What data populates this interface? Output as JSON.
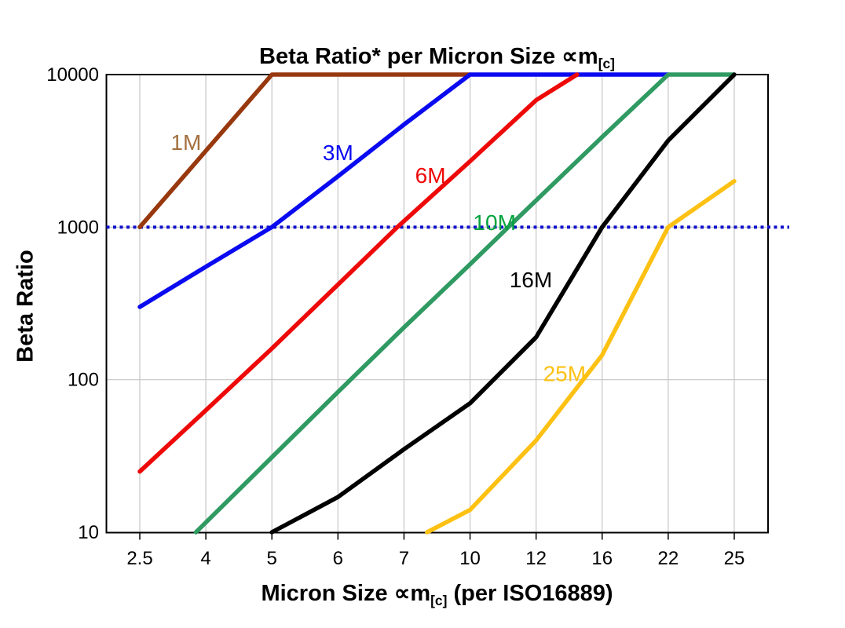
{
  "page": {
    "background": "#ffffff"
  },
  "chart_data": {
    "type": "line",
    "title": {
      "main": "Beta Ratio* per Micron Size ∝m",
      "sub": "[c]"
    },
    "x_axis": {
      "label_main": "Micron Size ∝m",
      "label_sub": "[c]",
      "label_tail": " (per ISO16889)",
      "categories": [
        "2.5",
        "4",
        "5",
        "6",
        "7",
        "10",
        "12",
        "16",
        "22",
        "25"
      ],
      "scale": "categorical-evenly-spaced"
    },
    "y_axis": {
      "label": "Beta Ratio",
      "scale": "log10",
      "ticks": [
        10,
        100,
        1000,
        10000
      ],
      "range": [
        10,
        10000
      ]
    },
    "grid": {
      "vertical_at_every_category": true,
      "horizontal_at": [
        100,
        1000
      ],
      "color": "#c6c6c6"
    },
    "reference_line": {
      "beta": 1000,
      "color": "#1111cc",
      "style": "dotted"
    },
    "series": [
      {
        "name": "1M",
        "color": "#98380e",
        "label": {
          "text": "1M",
          "color": "#a3703f",
          "xi": 0.7,
          "beta": 3600
        },
        "points": [
          [
            0,
            1000
          ],
          [
            1,
            3160
          ],
          [
            2,
            10000
          ],
          [
            5,
            10000
          ]
        ]
      },
      {
        "name": "3M",
        "color": "#0a0af0",
        "label": {
          "text": "3M",
          "color": "#0a0af0",
          "xi": 3.0,
          "beta": 3100
        },
        "points": [
          [
            0,
            300
          ],
          [
            1,
            550
          ],
          [
            2,
            1000
          ],
          [
            3,
            2150
          ],
          [
            4,
            4700
          ],
          [
            5,
            10000
          ],
          [
            8,
            10000
          ]
        ]
      },
      {
        "name": "6M",
        "color": "#ee0909",
        "label": {
          "text": "6M",
          "color": "#ee0909",
          "xi": 4.4,
          "beta": 2200
        },
        "points": [
          [
            0,
            25
          ],
          [
            1,
            63
          ],
          [
            2,
            160
          ],
          [
            3,
            420
          ],
          [
            3.9,
            1000
          ],
          [
            5,
            2700
          ],
          [
            6,
            6800
          ],
          [
            6.62,
            10000
          ]
        ]
      },
      {
        "name": "10M",
        "color": "#2f9a62",
        "label": {
          "text": "10M",
          "color": "#00a33c",
          "xi": 5.37,
          "beta": 1080
        },
        "points": [
          [
            0.85,
            10
          ],
          [
            2,
            31
          ],
          [
            3,
            83
          ],
          [
            4,
            220
          ],
          [
            5,
            570
          ],
          [
            5.58,
            1000
          ],
          [
            7,
            3900
          ],
          [
            8,
            10000
          ],
          [
            9,
            10000
          ]
        ]
      },
      {
        "name": "16M",
        "color": "#000000",
        "label": {
          "text": "16M",
          "color": "#000000",
          "xi": 5.92,
          "beta": 455
        },
        "points": [
          [
            2,
            10
          ],
          [
            3,
            17
          ],
          [
            4,
            35
          ],
          [
            5,
            70
          ],
          [
            6,
            190
          ],
          [
            7,
            1000
          ],
          [
            8,
            3700
          ],
          [
            9,
            10000
          ]
        ]
      },
      {
        "name": "25M",
        "color": "#fdc113",
        "label": {
          "text": "25M",
          "color": "#fdc113",
          "xi": 6.43,
          "beta": 110
        },
        "points": [
          [
            4.35,
            10
          ],
          [
            5,
            14
          ],
          [
            6,
            40
          ],
          [
            7,
            145
          ],
          [
            8,
            1000
          ],
          [
            9,
            2000
          ]
        ]
      }
    ]
  }
}
